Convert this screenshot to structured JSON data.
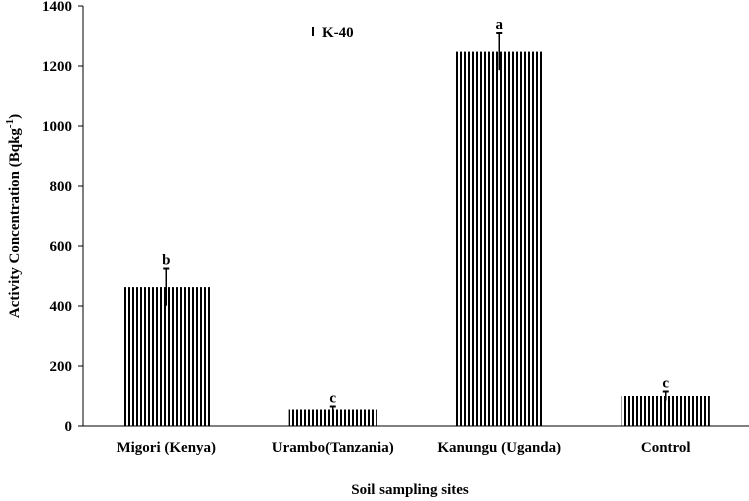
{
  "chart_data": {
    "type": "bar",
    "title": "",
    "xlabel": "Soil sampling sites",
    "ylabel": "Activity Concentration (Bqkg",
    "ylabel_superscript": "-1",
    "ylabel_close": ")",
    "ylim": [
      0,
      1400
    ],
    "yticks": [
      0,
      200,
      400,
      600,
      800,
      1000,
      1200,
      1400
    ],
    "categories": [
      "Migori (Kenya)",
      "Urambo(Tanzania)",
      "Kanungu (Uganda)",
      "Control"
    ],
    "series": [
      {
        "name": "K-40",
        "values": [
          463,
          55,
          1248,
          100
        ],
        "errors": [
          62,
          10,
          62,
          15
        ],
        "significance": [
          "b",
          "c",
          "a",
          "c"
        ]
      }
    ],
    "legend_position": "top-center",
    "grid": false,
    "bar_pattern": "vertical-stripes",
    "colors": {
      "bar_stripe": "#000000",
      "bar_background": "#ffffff"
    }
  }
}
